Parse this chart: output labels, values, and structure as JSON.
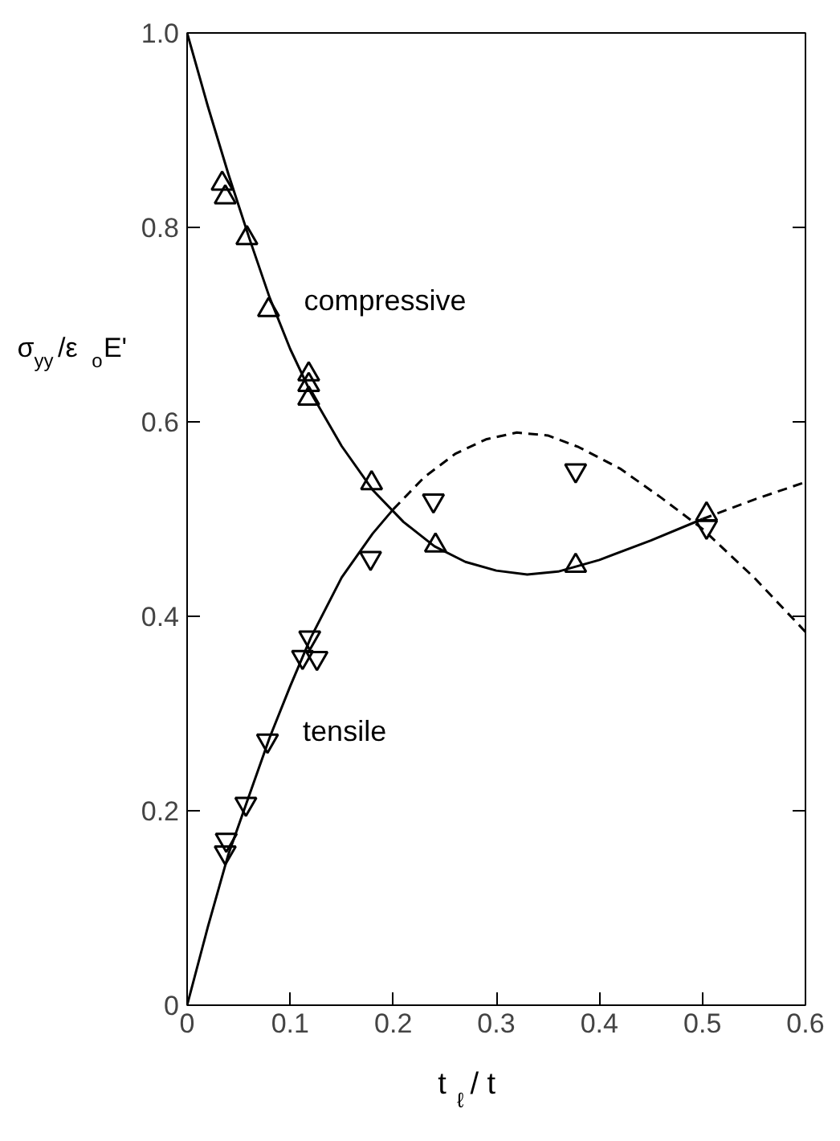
{
  "chart_data": {
    "type": "scatter",
    "xlabel": "t$_{ℓ}$ / t",
    "ylabel": "σ$_{yy}$/ε$_{o}$E'",
    "xlim": [
      0,
      0.6
    ],
    "xticks": [
      0,
      0.1,
      0.2,
      0.3,
      0.4,
      0.5,
      0.6
    ],
    "ylim": [
      0,
      1.0
    ],
    "yticks": [
      0,
      0.2,
      0.4,
      0.6,
      0.8,
      {
        "value": 1.0,
        "label": "1.0"
      }
    ],
    "grid": false,
    "tick_labels": "xy",
    "series": [
      {
        "name": "compressive",
        "marker": "triangle",
        "color": "#000000",
        "x": [
          0.034,
          0.037,
          0.058,
          0.079,
          0.118,
          0.118,
          0.118,
          0.179,
          0.241,
          0.377,
          0.504
        ],
        "values": [
          0.845,
          0.831,
          0.789,
          0.715,
          0.649,
          0.638,
          0.624,
          0.537,
          0.473,
          0.452,
          0.505
        ]
      },
      {
        "name": "tensile",
        "color": "#000000",
        "x": [
          0.038,
          0.037,
          0.057,
          0.078,
          0.119,
          0.112,
          0.126,
          0.178,
          0.239,
          0.377,
          0.504
        ],
        "values": [
          0.17,
          0.157,
          0.207,
          0.272,
          0.378,
          0.358,
          0.357,
          0.46,
          0.519,
          0.55,
          0.492
        ]
      },
      {
        "type": "line",
        "line_style": "solid",
        "color": "#000000",
        "x": [
          0,
          0.02,
          0.04,
          0.06,
          0.08,
          0.1,
          0.12,
          0.15,
          0.18,
          0.21,
          0.24,
          0.27,
          0.3,
          0.33,
          0.36,
          0.4,
          0.45,
          0.5
        ],
        "values": [
          1.0,
          0.925,
          0.855,
          0.79,
          0.728,
          0.675,
          0.63,
          0.575,
          0.53,
          0.497,
          0.472,
          0.456,
          0.447,
          0.443,
          0.446,
          0.458,
          0.478,
          0.5
        ]
      },
      {
        "type": "line",
        "line_style": "dashed",
        "color": "#000000",
        "x": [
          0.5,
          0.55,
          0.6
        ],
        "values": [
          0.5,
          0.52,
          0.538
        ]
      },
      {
        "type": "line",
        "line_style": "solid",
        "color": "#000000",
        "x": [
          0,
          0.02,
          0.04,
          0.06,
          0.08,
          0.1,
          0.12,
          0.15,
          0.18,
          0.2
        ],
        "values": [
          0,
          0.08,
          0.155,
          0.215,
          0.275,
          0.328,
          0.378,
          0.44,
          0.485,
          0.51
        ]
      },
      {
        "type": "line",
        "line_style": "dashed",
        "color": "#000000",
        "x": [
          0.2,
          0.23,
          0.26,
          0.29,
          0.32,
          0.35,
          0.38,
          0.42,
          0.46,
          0.5,
          0.55,
          0.6
        ],
        "values": [
          0.51,
          0.543,
          0.567,
          0.582,
          0.589,
          0.586,
          0.574,
          0.552,
          0.522,
          0.49,
          0.44,
          0.384
        ]
      }
    ]
  }
}
